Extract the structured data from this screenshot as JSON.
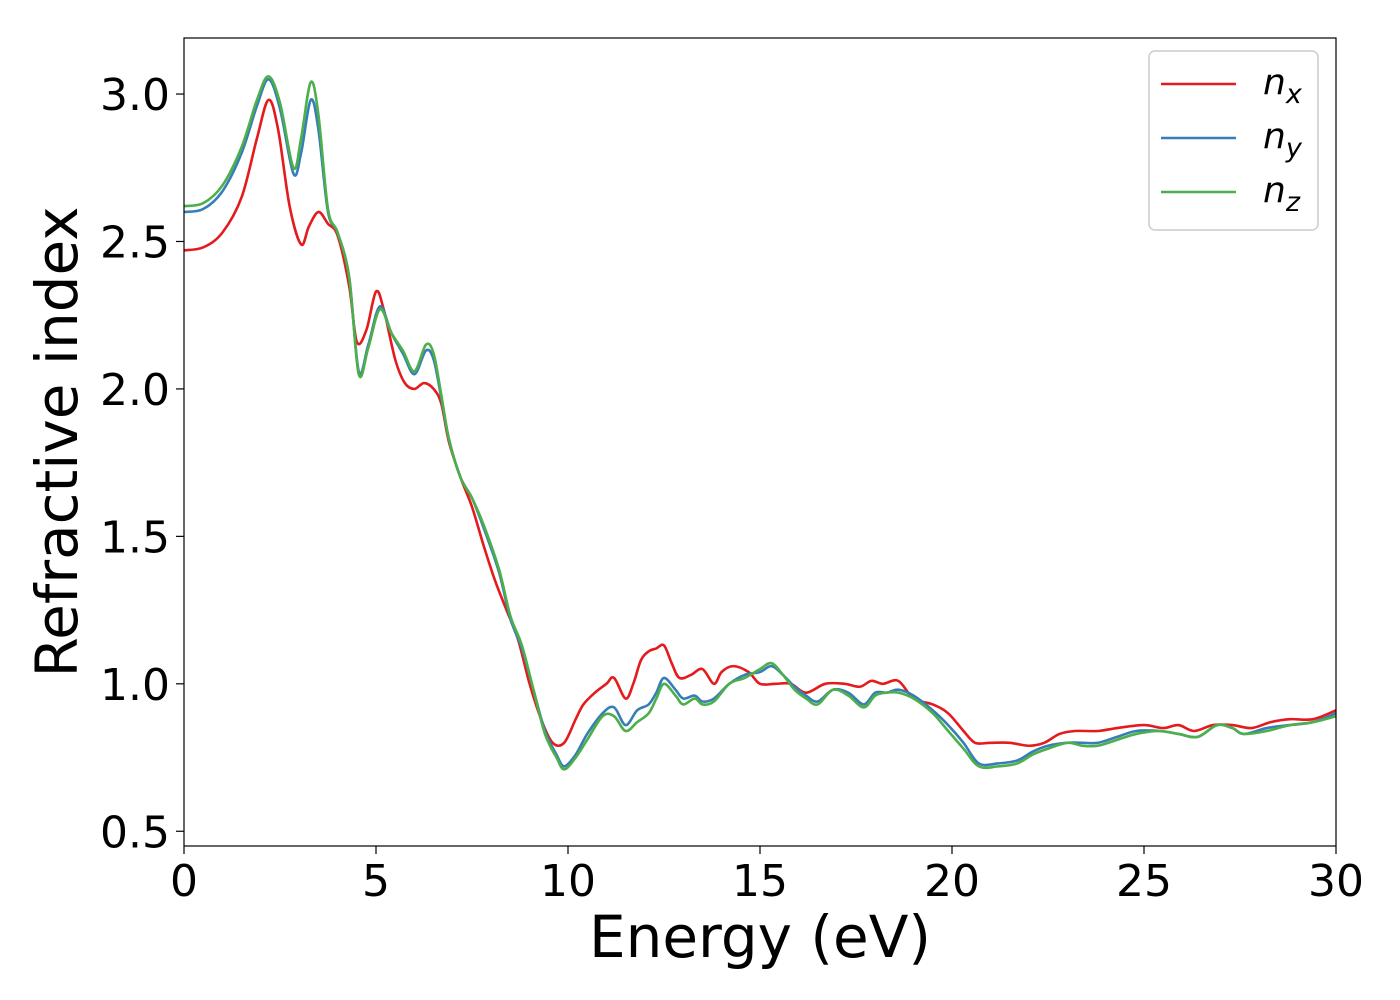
{
  "chart_data": {
    "type": "line",
    "xlabel": "Energy (eV)",
    "ylabel": "Refractive index",
    "xlim": [
      0,
      30
    ],
    "ylim": [
      0.45,
      3.19
    ],
    "xticks": [
      "0",
      "5",
      "10",
      "15",
      "20",
      "25",
      "30"
    ],
    "xtick_values": [
      0,
      5,
      10,
      15,
      20,
      25,
      30
    ],
    "yticks": [
      "0.5",
      "1.0",
      "1.5",
      "2.0",
      "2.5",
      "3.0"
    ],
    "ytick_values": [
      0.5,
      1.0,
      1.5,
      2.0,
      2.5,
      3.0
    ],
    "grid": false,
    "legend_position": "top-right",
    "series": [
      {
        "name": "n_x",
        "label_base": "n",
        "label_sub": "x",
        "color": "#e41a1c",
        "points": [
          [
            0,
            2.47
          ],
          [
            0.5,
            2.48
          ],
          [
            1.0,
            2.53
          ],
          [
            1.5,
            2.65
          ],
          [
            1.9,
            2.85
          ],
          [
            2.2,
            2.98
          ],
          [
            2.45,
            2.88
          ],
          [
            2.75,
            2.62
          ],
          [
            3.05,
            2.49
          ],
          [
            3.25,
            2.55
          ],
          [
            3.5,
            2.6
          ],
          [
            3.75,
            2.56
          ],
          [
            4.0,
            2.52
          ],
          [
            4.3,
            2.35
          ],
          [
            4.5,
            2.16
          ],
          [
            4.75,
            2.2
          ],
          [
            5.0,
            2.33
          ],
          [
            5.2,
            2.27
          ],
          [
            5.5,
            2.1
          ],
          [
            5.75,
            2.02
          ],
          [
            6.0,
            2.0
          ],
          [
            6.25,
            2.02
          ],
          [
            6.5,
            2.0
          ],
          [
            6.7,
            1.95
          ],
          [
            6.9,
            1.82
          ],
          [
            7.2,
            1.7
          ],
          [
            7.5,
            1.6
          ],
          [
            7.8,
            1.47
          ],
          [
            8.1,
            1.35
          ],
          [
            8.4,
            1.25
          ],
          [
            8.7,
            1.15
          ],
          [
            9.0,
            1.0
          ],
          [
            9.3,
            0.88
          ],
          [
            9.6,
            0.8
          ],
          [
            9.9,
            0.8
          ],
          [
            10.2,
            0.88
          ],
          [
            10.4,
            0.93
          ],
          [
            10.7,
            0.97
          ],
          [
            11.0,
            1.0
          ],
          [
            11.2,
            1.02
          ],
          [
            11.5,
            0.95
          ],
          [
            11.7,
            1.0
          ],
          [
            11.9,
            1.08
          ],
          [
            12.1,
            1.11
          ],
          [
            12.3,
            1.12
          ],
          [
            12.5,
            1.13
          ],
          [
            12.7,
            1.07
          ],
          [
            12.9,
            1.02
          ],
          [
            13.2,
            1.03
          ],
          [
            13.5,
            1.05
          ],
          [
            13.8,
            1.0
          ],
          [
            14.0,
            1.04
          ],
          [
            14.3,
            1.06
          ],
          [
            14.7,
            1.04
          ],
          [
            15.0,
            1.0
          ],
          [
            15.4,
            1.0
          ],
          [
            15.8,
            1.0
          ],
          [
            16.2,
            0.97
          ],
          [
            16.7,
            1.0
          ],
          [
            17.2,
            1.0
          ],
          [
            17.6,
            0.99
          ],
          [
            17.9,
            1.01
          ],
          [
            18.2,
            1.0
          ],
          [
            18.6,
            1.01
          ],
          [
            19.0,
            0.95
          ],
          [
            19.5,
            0.93
          ],
          [
            19.9,
            0.9
          ],
          [
            20.3,
            0.84
          ],
          [
            20.6,
            0.8
          ],
          [
            21.0,
            0.8
          ],
          [
            21.5,
            0.8
          ],
          [
            22.0,
            0.79
          ],
          [
            22.4,
            0.8
          ],
          [
            22.8,
            0.83
          ],
          [
            23.2,
            0.84
          ],
          [
            23.8,
            0.84
          ],
          [
            24.3,
            0.85
          ],
          [
            25.0,
            0.86
          ],
          [
            25.5,
            0.85
          ],
          [
            25.9,
            0.86
          ],
          [
            26.3,
            0.84
          ],
          [
            26.8,
            0.86
          ],
          [
            27.3,
            0.86
          ],
          [
            27.8,
            0.85
          ],
          [
            28.3,
            0.87
          ],
          [
            28.8,
            0.88
          ],
          [
            29.4,
            0.88
          ],
          [
            30.0,
            0.91
          ]
        ]
      },
      {
        "name": "n_y",
        "label_base": "n",
        "label_sub": "y",
        "color": "#377eb8",
        "points": [
          [
            0,
            2.6
          ],
          [
            0.5,
            2.61
          ],
          [
            1.0,
            2.67
          ],
          [
            1.5,
            2.8
          ],
          [
            1.9,
            2.96
          ],
          [
            2.2,
            3.05
          ],
          [
            2.5,
            2.95
          ],
          [
            2.85,
            2.73
          ],
          [
            3.05,
            2.8
          ],
          [
            3.3,
            2.98
          ],
          [
            3.5,
            2.88
          ],
          [
            3.75,
            2.6
          ],
          [
            4.0,
            2.53
          ],
          [
            4.3,
            2.38
          ],
          [
            4.55,
            2.06
          ],
          [
            4.8,
            2.15
          ],
          [
            5.1,
            2.28
          ],
          [
            5.4,
            2.19
          ],
          [
            5.7,
            2.12
          ],
          [
            6.0,
            2.05
          ],
          [
            6.3,
            2.13
          ],
          [
            6.5,
            2.1
          ],
          [
            6.7,
            1.97
          ],
          [
            6.9,
            1.83
          ],
          [
            7.2,
            1.7
          ],
          [
            7.5,
            1.63
          ],
          [
            7.8,
            1.53
          ],
          [
            8.2,
            1.38
          ],
          [
            8.5,
            1.22
          ],
          [
            8.8,
            1.12
          ],
          [
            9.1,
            0.98
          ],
          [
            9.4,
            0.84
          ],
          [
            9.7,
            0.76
          ],
          [
            9.9,
            0.72
          ],
          [
            10.2,
            0.76
          ],
          [
            10.5,
            0.83
          ],
          [
            10.9,
            0.9
          ],
          [
            11.2,
            0.92
          ],
          [
            11.5,
            0.86
          ],
          [
            11.8,
            0.91
          ],
          [
            12.1,
            0.93
          ],
          [
            12.3,
            0.97
          ],
          [
            12.5,
            1.02
          ],
          [
            12.8,
            0.98
          ],
          [
            13.0,
            0.95
          ],
          [
            13.3,
            0.96
          ],
          [
            13.5,
            0.94
          ],
          [
            13.8,
            0.95
          ],
          [
            14.2,
            1.0
          ],
          [
            14.6,
            1.03
          ],
          [
            15.0,
            1.04
          ],
          [
            15.3,
            1.06
          ],
          [
            15.6,
            1.03
          ],
          [
            15.9,
            0.99
          ],
          [
            16.2,
            0.96
          ],
          [
            16.5,
            0.94
          ],
          [
            16.9,
            0.98
          ],
          [
            17.3,
            0.97
          ],
          [
            17.7,
            0.93
          ],
          [
            18.0,
            0.97
          ],
          [
            18.3,
            0.97
          ],
          [
            18.6,
            0.98
          ],
          [
            19.0,
            0.96
          ],
          [
            19.5,
            0.91
          ],
          [
            19.9,
            0.86
          ],
          [
            20.3,
            0.8
          ],
          [
            20.7,
            0.73
          ],
          [
            21.2,
            0.73
          ],
          [
            21.7,
            0.74
          ],
          [
            22.1,
            0.77
          ],
          [
            22.5,
            0.79
          ],
          [
            23.0,
            0.8
          ],
          [
            23.4,
            0.8
          ],
          [
            23.8,
            0.8
          ],
          [
            24.3,
            0.82
          ],
          [
            24.8,
            0.84
          ],
          [
            25.4,
            0.84
          ],
          [
            25.9,
            0.83
          ],
          [
            26.4,
            0.82
          ],
          [
            26.9,
            0.86
          ],
          [
            27.3,
            0.85
          ],
          [
            27.6,
            0.83
          ],
          [
            28.2,
            0.85
          ],
          [
            28.8,
            0.86
          ],
          [
            29.4,
            0.87
          ],
          [
            30.0,
            0.9
          ]
        ]
      },
      {
        "name": "n_z",
        "label_base": "n",
        "label_sub": "z",
        "color": "#4daf4a",
        "points": [
          [
            0,
            2.62
          ],
          [
            0.5,
            2.63
          ],
          [
            1.0,
            2.69
          ],
          [
            1.5,
            2.82
          ],
          [
            1.9,
            2.98
          ],
          [
            2.2,
            3.06
          ],
          [
            2.5,
            2.97
          ],
          [
            2.85,
            2.75
          ],
          [
            3.05,
            2.85
          ],
          [
            3.3,
            3.04
          ],
          [
            3.5,
            2.93
          ],
          [
            3.75,
            2.61
          ],
          [
            4.0,
            2.53
          ],
          [
            4.3,
            2.38
          ],
          [
            4.55,
            2.05
          ],
          [
            4.8,
            2.14
          ],
          [
            5.1,
            2.27
          ],
          [
            5.4,
            2.19
          ],
          [
            5.7,
            2.13
          ],
          [
            6.0,
            2.06
          ],
          [
            6.3,
            2.15
          ],
          [
            6.5,
            2.12
          ],
          [
            6.7,
            1.98
          ],
          [
            6.9,
            1.83
          ],
          [
            7.2,
            1.7
          ],
          [
            7.5,
            1.63
          ],
          [
            7.8,
            1.54
          ],
          [
            8.2,
            1.39
          ],
          [
            8.5,
            1.23
          ],
          [
            8.8,
            1.13
          ],
          [
            9.1,
            0.98
          ],
          [
            9.4,
            0.83
          ],
          [
            9.7,
            0.75
          ],
          [
            9.9,
            0.71
          ],
          [
            10.2,
            0.75
          ],
          [
            10.5,
            0.81
          ],
          [
            10.9,
            0.89
          ],
          [
            11.2,
            0.89
          ],
          [
            11.5,
            0.84
          ],
          [
            11.8,
            0.87
          ],
          [
            12.1,
            0.9
          ],
          [
            12.3,
            0.95
          ],
          [
            12.5,
            1.0
          ],
          [
            12.8,
            0.96
          ],
          [
            13.0,
            0.93
          ],
          [
            13.3,
            0.95
          ],
          [
            13.5,
            0.93
          ],
          [
            13.8,
            0.94
          ],
          [
            14.2,
            1.0
          ],
          [
            14.6,
            1.02
          ],
          [
            15.0,
            1.05
          ],
          [
            15.3,
            1.07
          ],
          [
            15.6,
            1.03
          ],
          [
            15.9,
            0.98
          ],
          [
            16.2,
            0.95
          ],
          [
            16.5,
            0.93
          ],
          [
            16.9,
            0.98
          ],
          [
            17.3,
            0.96
          ],
          [
            17.7,
            0.92
          ],
          [
            18.0,
            0.96
          ],
          [
            18.3,
            0.97
          ],
          [
            18.6,
            0.97
          ],
          [
            19.0,
            0.95
          ],
          [
            19.5,
            0.9
          ],
          [
            19.9,
            0.84
          ],
          [
            20.3,
            0.78
          ],
          [
            20.7,
            0.72
          ],
          [
            21.2,
            0.72
          ],
          [
            21.7,
            0.73
          ],
          [
            22.1,
            0.76
          ],
          [
            22.5,
            0.78
          ],
          [
            23.0,
            0.8
          ],
          [
            23.4,
            0.79
          ],
          [
            23.8,
            0.79
          ],
          [
            24.3,
            0.81
          ],
          [
            24.8,
            0.83
          ],
          [
            25.4,
            0.84
          ],
          [
            25.9,
            0.83
          ],
          [
            26.4,
            0.82
          ],
          [
            26.9,
            0.86
          ],
          [
            27.3,
            0.85
          ],
          [
            27.6,
            0.83
          ],
          [
            28.2,
            0.84
          ],
          [
            28.8,
            0.86
          ],
          [
            29.4,
            0.87
          ],
          [
            30.0,
            0.89
          ]
        ]
      }
    ]
  }
}
